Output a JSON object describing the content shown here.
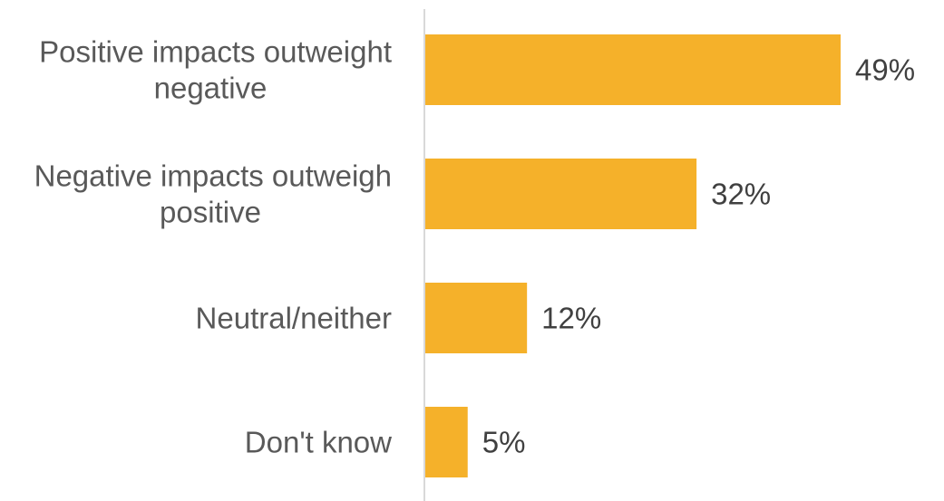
{
  "chart_data": {
    "type": "bar",
    "orientation": "horizontal",
    "categories": [
      [
        "Positive impacts outweight",
        "negative"
      ],
      [
        "Negative impacts outweigh",
        "positive"
      ],
      [
        "Neutral/neither"
      ],
      [
        "Don't know"
      ]
    ],
    "values": [
      49,
      32,
      12,
      5
    ],
    "value_labels": [
      "49%",
      "32%",
      "12%",
      "5%"
    ],
    "title": "",
    "xlabel": "",
    "ylabel": "",
    "xlim": [
      0,
      50
    ],
    "grid": false,
    "legend": "none",
    "colors": {
      "bar": "#F5B12A",
      "axis": "#D9D9D9",
      "category_text": "#595959",
      "value_text": "#404040"
    }
  }
}
